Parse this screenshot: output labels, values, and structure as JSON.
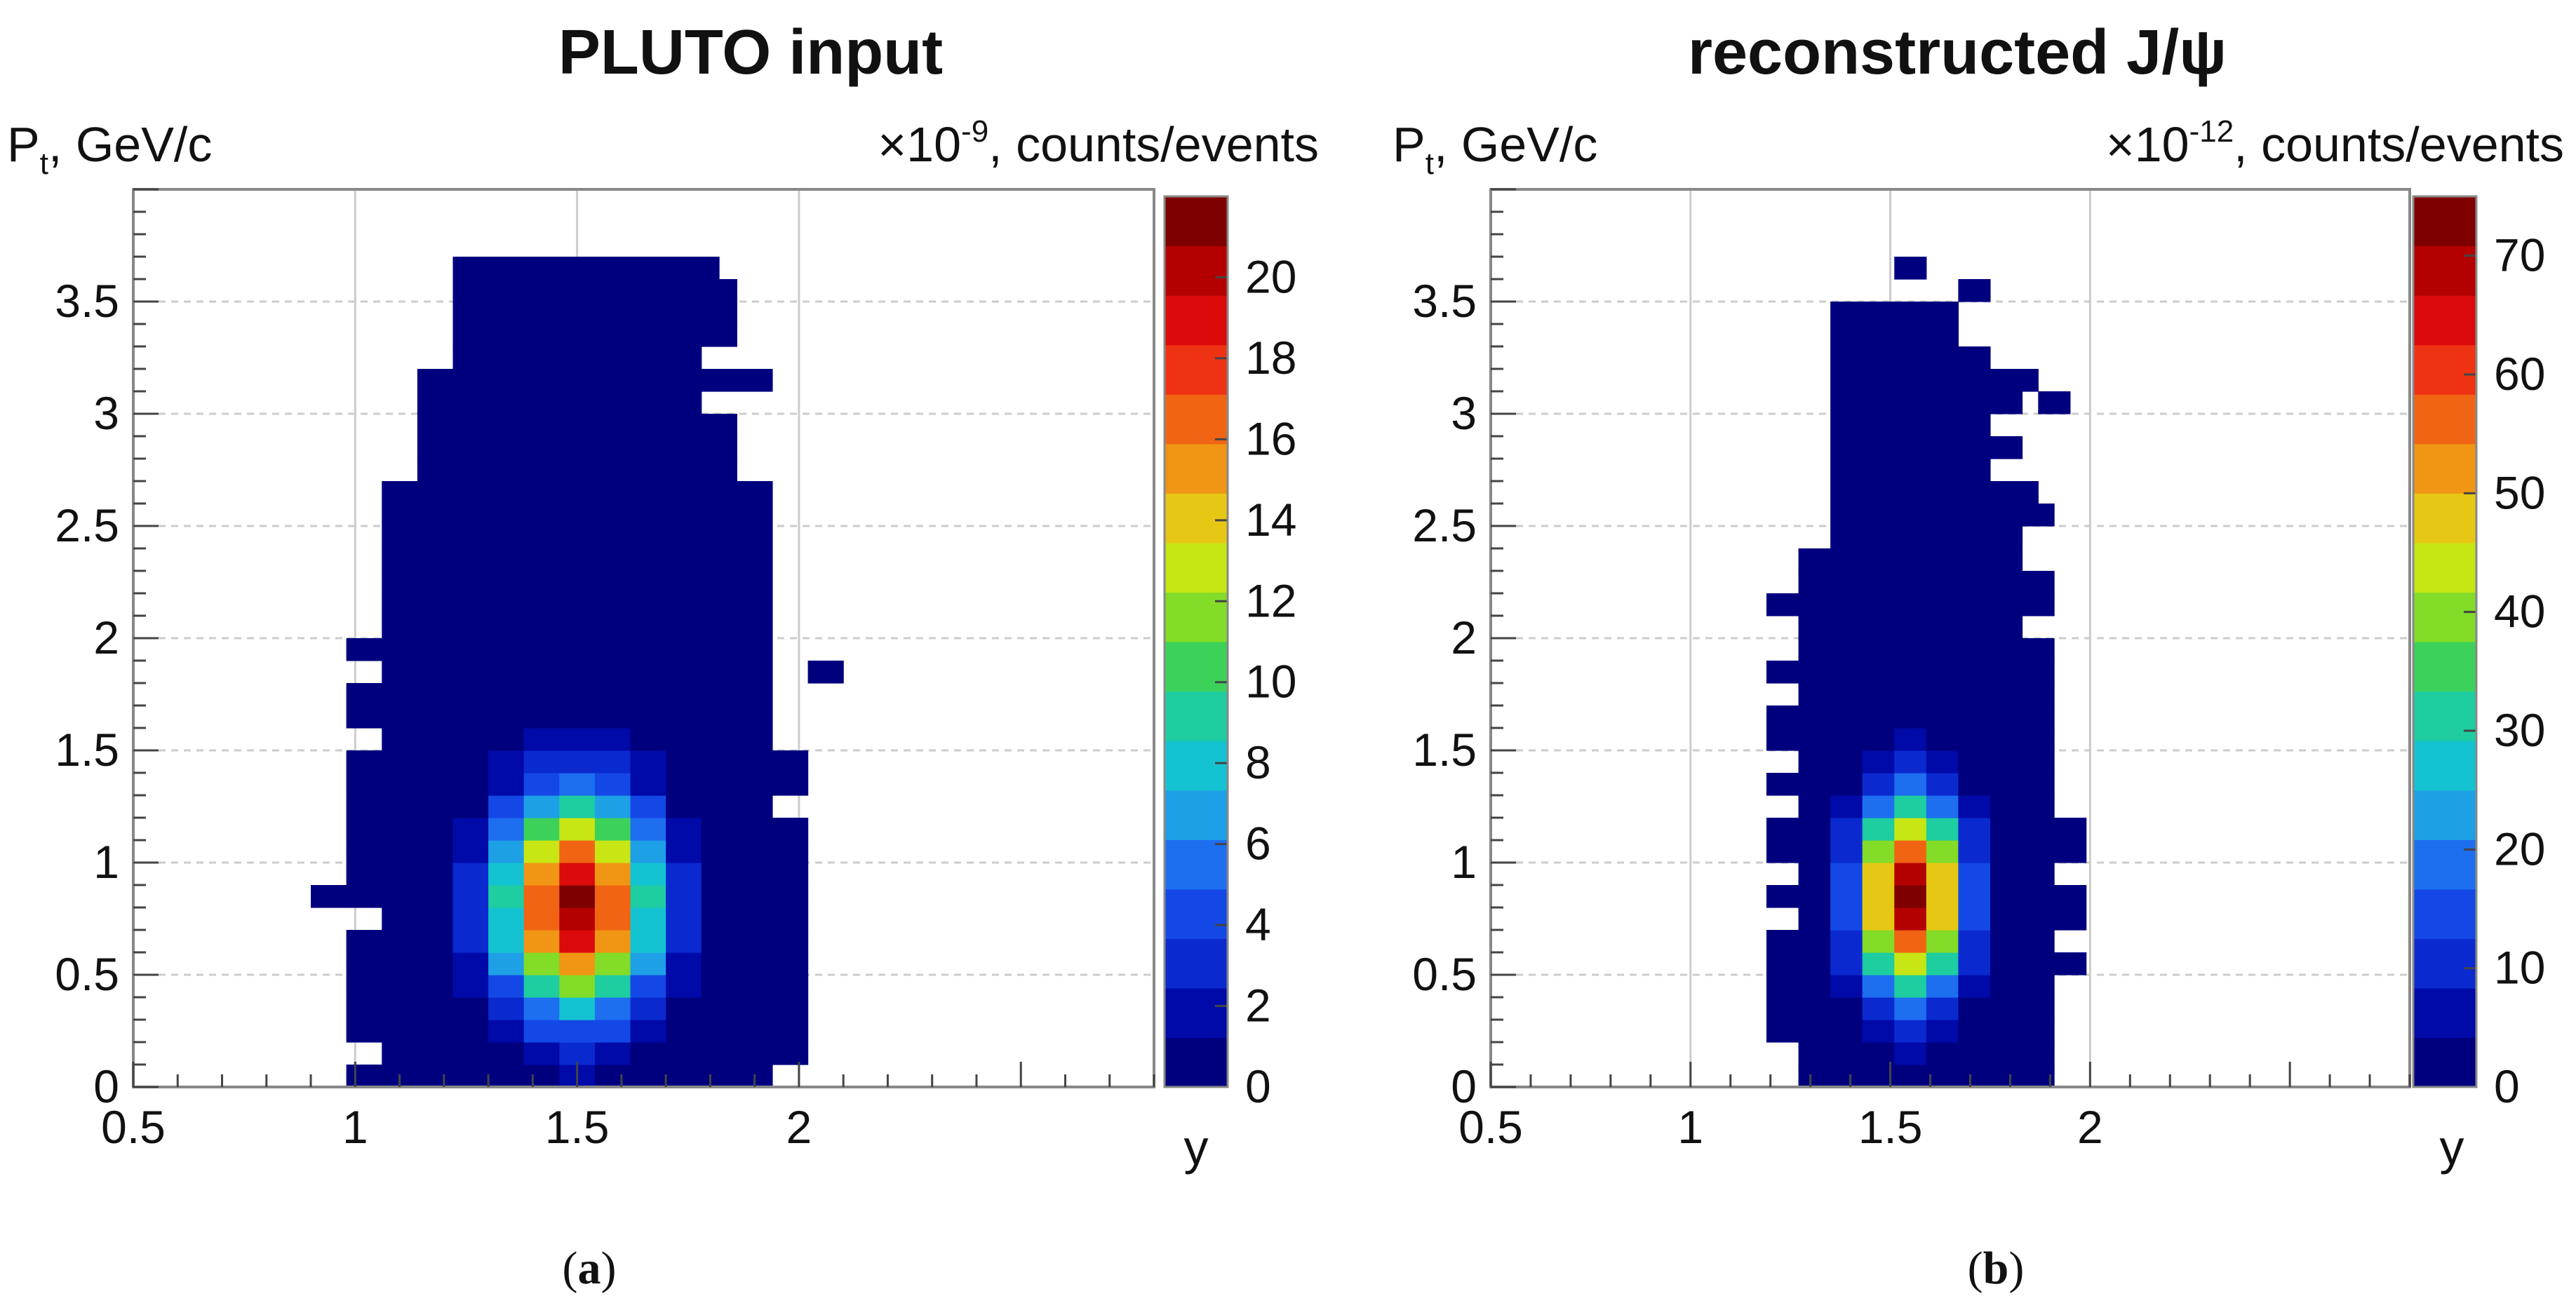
{
  "colors": {
    "ramp": [
      "#00007f",
      "#000aa8",
      "#0a2ad0",
      "#1448e6",
      "#1e6ef0",
      "#1ea0e6",
      "#14c3d2",
      "#1ecda0",
      "#3cd25a",
      "#82dc28",
      "#c8e614",
      "#e6c814",
      "#f09614",
      "#f06414",
      "#f03214",
      "#dc0a0a",
      "#b40000",
      "#7f0000"
    ],
    "grid": "#cccccc",
    "frame": "#888888",
    "text": "#111111"
  },
  "panels": [
    {
      "caption_letter": "a",
      "caption_paren_open": "(",
      "caption_paren_close": ")",
      "chart_data": {
        "type": "heatmap",
        "title": "PLUTO input",
        "ylabel": "P",
        "ylabel_sub": "t",
        "ylabel_unit": ", GeV/c",
        "xlabel": "y",
        "zlabel_prefix": "×10",
        "zlabel_exp": "-9",
        "zlabel_suffix": ", counts/events",
        "xlim": [
          0.5,
          2.8
        ],
        "ylim": [
          0,
          4.0
        ],
        "zlim": [
          0,
          22
        ],
        "x_ticks": [
          {
            "value": 0.5,
            "label": "0.5"
          },
          {
            "value": 1,
            "label": "1"
          },
          {
            "value": 1.5,
            "label": "1.5"
          },
          {
            "value": 2,
            "label": "2"
          }
        ],
        "y_ticks": [
          {
            "value": 0,
            "label": "0"
          },
          {
            "value": 0.5,
            "label": "0.5"
          },
          {
            "value": 1,
            "label": "1"
          },
          {
            "value": 1.5,
            "label": "1.5"
          },
          {
            "value": 2,
            "label": "2"
          },
          {
            "value": 2.5,
            "label": "2.5"
          },
          {
            "value": 3,
            "label": "3"
          },
          {
            "value": 3.5,
            "label": "3.5"
          }
        ],
        "z_ticks": [
          {
            "value": 0,
            "label": "0"
          },
          {
            "value": 2,
            "label": "2"
          },
          {
            "value": 4,
            "label": "4"
          },
          {
            "value": 6,
            "label": "6"
          },
          {
            "value": 8,
            "label": "8"
          },
          {
            "value": 10,
            "label": "10"
          },
          {
            "value": 12,
            "label": "12"
          },
          {
            "value": 14,
            "label": "14"
          },
          {
            "value": 16,
            "label": "16"
          },
          {
            "value": 18,
            "label": "18"
          },
          {
            "value": 20,
            "label": "20"
          }
        ],
        "bin_width_x": 0.08,
        "bin_width_y": 0.1,
        "dist": {
          "mx": 1.5,
          "sx": 0.12,
          "my": 0.82,
          "sy": 0.33,
          "peak": 21
        },
        "occupancy": [
          {
            "y0": 0.0,
            "x_lo": 0.98,
            "x_hi": 1.9
          },
          {
            "y0": 0.1,
            "x_lo": 1.06,
            "x_hi": 1.98
          },
          {
            "y0": 0.2,
            "x_lo": 0.98,
            "x_hi": 1.98
          },
          {
            "y0": 0.3,
            "x_lo": 0.98,
            "x_hi": 1.98
          },
          {
            "y0": 0.4,
            "x_lo": 0.98,
            "x_hi": 1.98
          },
          {
            "y0": 0.5,
            "x_lo": 0.98,
            "x_hi": 1.98
          },
          {
            "y0": 0.6,
            "x_lo": 0.98,
            "x_hi": 1.98
          },
          {
            "y0": 0.7,
            "x_lo": 1.06,
            "x_hi": 1.98
          },
          {
            "y0": 0.8,
            "x_lo": 0.9,
            "x_hi": 1.98
          },
          {
            "y0": 0.9,
            "x_lo": 0.98,
            "x_hi": 1.98
          },
          {
            "y0": 1.0,
            "x_lo": 0.98,
            "x_hi": 1.98
          },
          {
            "y0": 1.1,
            "x_lo": 0.98,
            "x_hi": 1.98
          },
          {
            "y0": 1.2,
            "x_lo": 0.98,
            "x_hi": 1.9
          },
          {
            "y0": 1.3,
            "x_lo": 0.98,
            "x_hi": 1.98
          },
          {
            "y0": 1.4,
            "x_lo": 0.98,
            "x_hi": 1.98
          },
          {
            "y0": 1.5,
            "x_lo": 1.06,
            "x_hi": 1.9
          },
          {
            "y0": 1.6,
            "x_lo": 0.98,
            "x_hi": 1.9
          },
          {
            "y0": 1.7,
            "x_lo": 0.98,
            "x_hi": 1.9
          },
          {
            "y0": 1.8,
            "x_lo": 1.06,
            "x_hi": 1.9
          },
          {
            "y0": 1.9,
            "x_lo": 0.98,
            "x_hi": 1.9
          },
          {
            "y0": 2.0,
            "x_lo": 1.06,
            "x_hi": 1.9
          },
          {
            "y0": 2.1,
            "x_lo": 1.06,
            "x_hi": 1.9
          },
          {
            "y0": 2.2,
            "x_lo": 1.06,
            "x_hi": 1.9
          },
          {
            "y0": 2.3,
            "x_lo": 1.06,
            "x_hi": 1.9
          },
          {
            "y0": 2.4,
            "x_lo": 1.06,
            "x_hi": 1.9
          },
          {
            "y0": 2.5,
            "x_lo": 1.06,
            "x_hi": 1.9
          },
          {
            "y0": 2.6,
            "x_lo": 1.06,
            "x_hi": 1.9
          },
          {
            "y0": 2.7,
            "x_lo": 1.14,
            "x_hi": 1.82
          },
          {
            "y0": 2.8,
            "x_lo": 1.14,
            "x_hi": 1.82
          },
          {
            "y0": 2.9,
            "x_lo": 1.14,
            "x_hi": 1.82
          },
          {
            "y0": 3.0,
            "x_lo": 1.14,
            "x_hi": 1.74
          },
          {
            "y0": 3.1,
            "x_lo": 1.14,
            "x_hi": 1.9
          },
          {
            "y0": 3.2,
            "x_lo": 1.22,
            "x_hi": 1.74
          },
          {
            "y0": 3.3,
            "x_lo": 1.22,
            "x_hi": 1.82
          },
          {
            "y0": 3.4,
            "x_lo": 1.22,
            "x_hi": 1.82
          },
          {
            "y0": 3.5,
            "x_lo": 1.22,
            "x_hi": 1.82
          },
          {
            "y0": 3.6,
            "x_lo": 1.22,
            "x_hi": 1.74
          }
        ],
        "extra_bins": [
          {
            "x": 2.06,
            "y": 1.85
          },
          {
            "x": 1.78,
            "y": 3.65
          }
        ]
      }
    },
    {
      "caption_letter": "b",
      "caption_paren_open": "(",
      "caption_paren_close": ")",
      "chart_data": {
        "type": "heatmap",
        "title": "reconstructed J/ψ",
        "ylabel": "P",
        "ylabel_sub": "t",
        "ylabel_unit": ", GeV/c",
        "xlabel": "y",
        "zlabel_prefix": "×10",
        "zlabel_exp": "-12",
        "zlabel_suffix": ", counts/events",
        "xlim": [
          0.5,
          2.8
        ],
        "ylim": [
          0,
          4.0
        ],
        "zlim": [
          0,
          75
        ],
        "x_ticks": [
          {
            "value": 0.5,
            "label": "0.5"
          },
          {
            "value": 1,
            "label": "1"
          },
          {
            "value": 1.5,
            "label": "1.5"
          },
          {
            "value": 2,
            "label": "2"
          }
        ],
        "y_ticks": [
          {
            "value": 0,
            "label": "0"
          },
          {
            "value": 0.5,
            "label": "0.5"
          },
          {
            "value": 1,
            "label": "1"
          },
          {
            "value": 1.5,
            "label": "1.5"
          },
          {
            "value": 2,
            "label": "2"
          },
          {
            "value": 2.5,
            "label": "2.5"
          },
          {
            "value": 3,
            "label": "3"
          },
          {
            "value": 3.5,
            "label": "3.5"
          }
        ],
        "z_ticks": [
          {
            "value": 0,
            "label": "0"
          },
          {
            "value": 10,
            "label": "10"
          },
          {
            "value": 20,
            "label": "20"
          },
          {
            "value": 30,
            "label": "30"
          },
          {
            "value": 40,
            "label": "40"
          },
          {
            "value": 50,
            "label": "50"
          },
          {
            "value": 60,
            "label": "60"
          },
          {
            "value": 70,
            "label": "70"
          }
        ],
        "bin_width_x": 0.08,
        "bin_width_y": 0.1,
        "dist": {
          "mx": 1.55,
          "sx": 0.09,
          "my": 0.85,
          "sy": 0.3,
          "peak": 72
        },
        "occupancy": [
          {
            "y0": 0.0,
            "x_lo": 1.27,
            "x_hi": 1.91
          },
          {
            "y0": 0.1,
            "x_lo": 1.27,
            "x_hi": 1.91
          },
          {
            "y0": 0.2,
            "x_lo": 1.19,
            "x_hi": 1.91
          },
          {
            "y0": 0.3,
            "x_lo": 1.19,
            "x_hi": 1.91
          },
          {
            "y0": 0.4,
            "x_lo": 1.19,
            "x_hi": 1.91
          },
          {
            "y0": 0.5,
            "x_lo": 1.19,
            "x_hi": 1.99
          },
          {
            "y0": 0.6,
            "x_lo": 1.19,
            "x_hi": 1.91
          },
          {
            "y0": 0.7,
            "x_lo": 1.27,
            "x_hi": 1.99
          },
          {
            "y0": 0.8,
            "x_lo": 1.19,
            "x_hi": 1.99
          },
          {
            "y0": 0.9,
            "x_lo": 1.27,
            "x_hi": 1.91
          },
          {
            "y0": 1.0,
            "x_lo": 1.19,
            "x_hi": 1.99
          },
          {
            "y0": 1.1,
            "x_lo": 1.19,
            "x_hi": 1.99
          },
          {
            "y0": 1.2,
            "x_lo": 1.27,
            "x_hi": 1.91
          },
          {
            "y0": 1.3,
            "x_lo": 1.19,
            "x_hi": 1.91
          },
          {
            "y0": 1.4,
            "x_lo": 1.27,
            "x_hi": 1.91
          },
          {
            "y0": 1.5,
            "x_lo": 1.19,
            "x_hi": 1.91
          },
          {
            "y0": 1.6,
            "x_lo": 1.19,
            "x_hi": 1.91
          },
          {
            "y0": 1.7,
            "x_lo": 1.27,
            "x_hi": 1.91
          },
          {
            "y0": 1.8,
            "x_lo": 1.19,
            "x_hi": 1.91
          },
          {
            "y0": 1.9,
            "x_lo": 1.27,
            "x_hi": 1.91
          },
          {
            "y0": 2.0,
            "x_lo": 1.27,
            "x_hi": 1.83
          },
          {
            "y0": 2.1,
            "x_lo": 1.19,
            "x_hi": 1.91
          },
          {
            "y0": 2.2,
            "x_lo": 1.27,
            "x_hi": 1.91
          },
          {
            "y0": 2.3,
            "x_lo": 1.27,
            "x_hi": 1.83
          },
          {
            "y0": 2.4,
            "x_lo": 1.35,
            "x_hi": 1.83
          },
          {
            "y0": 2.5,
            "x_lo": 1.35,
            "x_hi": 1.91
          },
          {
            "y0": 2.6,
            "x_lo": 1.35,
            "x_hi": 1.83
          },
          {
            "y0": 2.7,
            "x_lo": 1.35,
            "x_hi": 1.75
          },
          {
            "y0": 2.8,
            "x_lo": 1.35,
            "x_hi": 1.83
          },
          {
            "y0": 2.9,
            "x_lo": 1.35,
            "x_hi": 1.75
          },
          {
            "y0": 3.0,
            "x_lo": 1.35,
            "x_hi": 1.83
          },
          {
            "y0": 3.1,
            "x_lo": 1.35,
            "x_hi": 1.83
          },
          {
            "y0": 3.2,
            "x_lo": 1.35,
            "x_hi": 1.75
          },
          {
            "y0": 3.3,
            "x_lo": 1.35,
            "x_hi": 1.67
          },
          {
            "y0": 3.4,
            "x_lo": 1.43,
            "x_hi": 1.67
          }
        ],
        "extra_bins": [
          {
            "x": 1.91,
            "y": 3.05
          },
          {
            "x": 1.83,
            "y": 3.15
          },
          {
            "x": 1.39,
            "y": 3.45
          },
          {
            "x": 1.71,
            "y": 3.55
          },
          {
            "x": 1.55,
            "y": 3.65
          },
          {
            "x": 1.83,
            "y": 2.65
          },
          {
            "x": 1.83,
            "y": 2.25
          }
        ]
      }
    }
  ]
}
